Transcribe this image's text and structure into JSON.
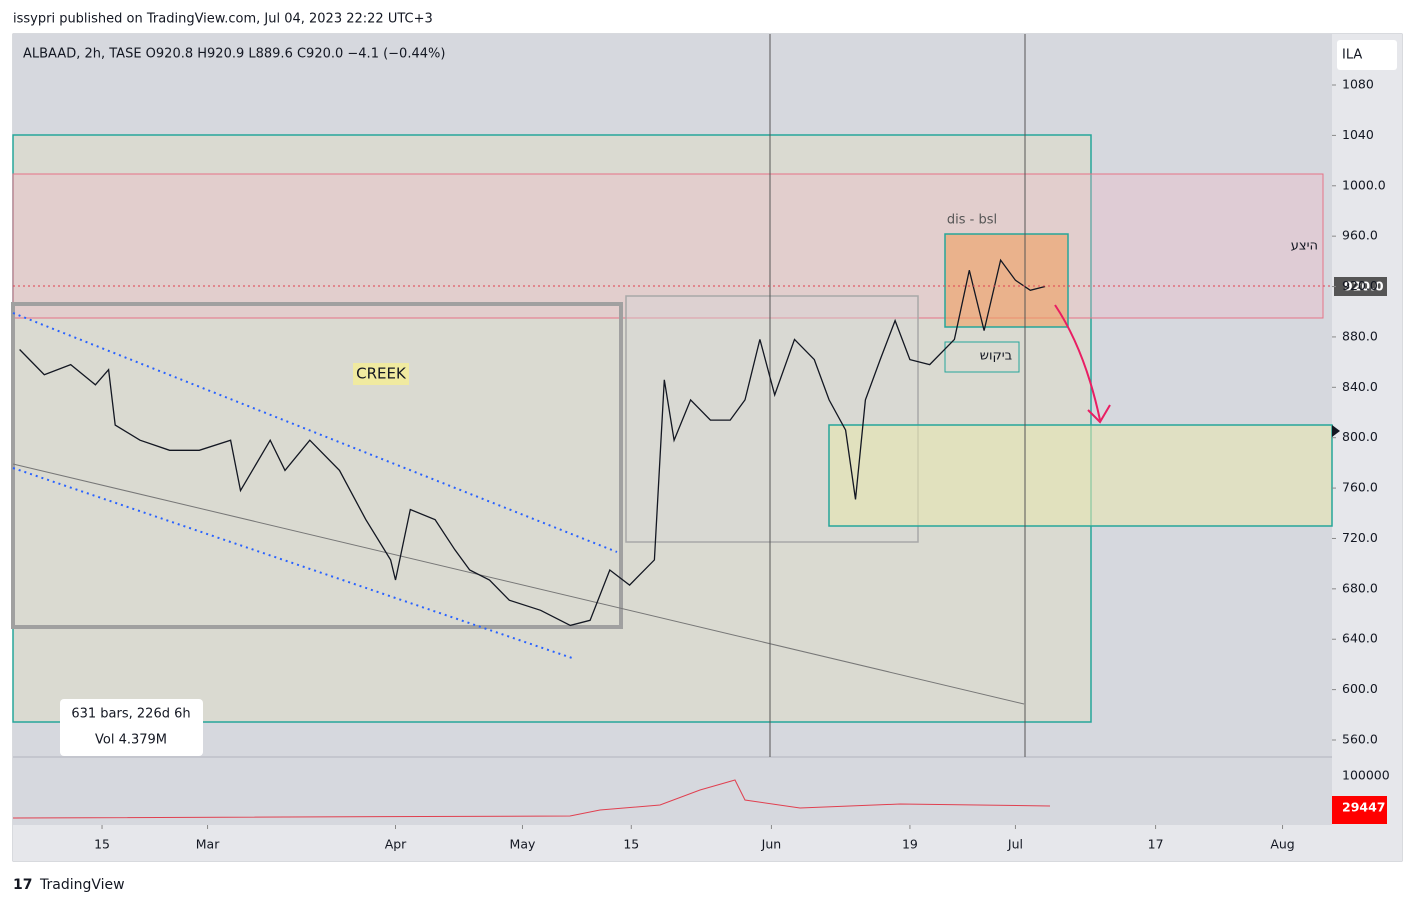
{
  "header": {
    "published": "issypri published on TradingView.com, Jul 04, 2023 22:22 UTC+3"
  },
  "legend": {
    "symbol": "ALBAAD, 2h, TASE  O920.8  H920.9  L889.6  C920.0  −4.1 (−0.44%)",
    "currency": "ILA"
  },
  "annotations": {
    "creek": "CREEK",
    "dis_bsl": "dis - bsl",
    "supply": "היצע",
    "demand": "ביקוש"
  },
  "info_box": {
    "bars": "631 bars, 226d 6h",
    "volume": "Vol 4.379M"
  },
  "volume_pane": {
    "scale_label": "100000",
    "last_volume": "29447"
  },
  "last_price_label": "920.0",
  "footer": {
    "brand": "TradingView"
  },
  "chart_data": {
    "type": "line",
    "color": "#131722",
    "x": [
      4,
      19,
      35,
      50,
      58,
      62,
      77,
      95,
      113,
      132,
      138,
      156,
      165,
      180,
      198,
      214,
      229,
      232,
      241,
      256,
      268,
      277,
      289,
      301,
      320,
      338,
      350,
      362,
      374,
      389,
      395,
      401,
      411,
      423,
      435,
      444,
      453,
      462,
      474,
      486,
      495,
      505,
      511,
      517,
      526,
      535,
      544,
      556,
      571,
      580,
      589,
      599,
      608,
      617,
      626
    ],
    "values": [
      870,
      850,
      858,
      842,
      854,
      810,
      798,
      790,
      790,
      798,
      758,
      798,
      774,
      798,
      774,
      735,
      703,
      687,
      743,
      735,
      711,
      695,
      687,
      671,
      663,
      651,
      655,
      695,
      683,
      703,
      846,
      798,
      830,
      814,
      814,
      830,
      878,
      834,
      878,
      862,
      830,
      806,
      751,
      830,
      862,
      893,
      862,
      858,
      878,
      933,
      885,
      941,
      925,
      917,
      920
    ],
    "xlim": [
      0,
      800
    ],
    "xticks": [
      {
        "value": 54,
        "label": "15"
      },
      {
        "value": 118,
        "label": "Mar"
      },
      {
        "value": 232,
        "label": "Apr"
      },
      {
        "value": 309,
        "label": "May"
      },
      {
        "value": 375,
        "label": "15"
      },
      {
        "value": 460,
        "label": "Jun"
      },
      {
        "value": 544,
        "label": "19"
      },
      {
        "value": 608,
        "label": "Jul"
      },
      {
        "value": 693,
        "label": "17"
      },
      {
        "value": 770,
        "label": "Aug"
      }
    ],
    "ylim": [
      546.5,
      1120.5
    ],
    "yticks": [
      {
        "value": 560,
        "label": "560.0"
      },
      {
        "value": 600,
        "label": "600.0"
      },
      {
        "value": 640,
        "label": "640.0"
      },
      {
        "value": 680,
        "label": "680.0"
      },
      {
        "value": 720,
        "label": "720.0"
      },
      {
        "value": 760,
        "label": "760.0"
      },
      {
        "value": 800,
        "label": "800.0"
      },
      {
        "value": 840,
        "label": "840.0"
      },
      {
        "value": 880,
        "label": "880.0"
      },
      {
        "value": 920,
        "label": "920.0"
      },
      {
        "value": 960,
        "label": "960.0"
      },
      {
        "value": 1000,
        "label": "1000.0"
      },
      1040,
      1080
    ],
    "grid": false
  }
}
